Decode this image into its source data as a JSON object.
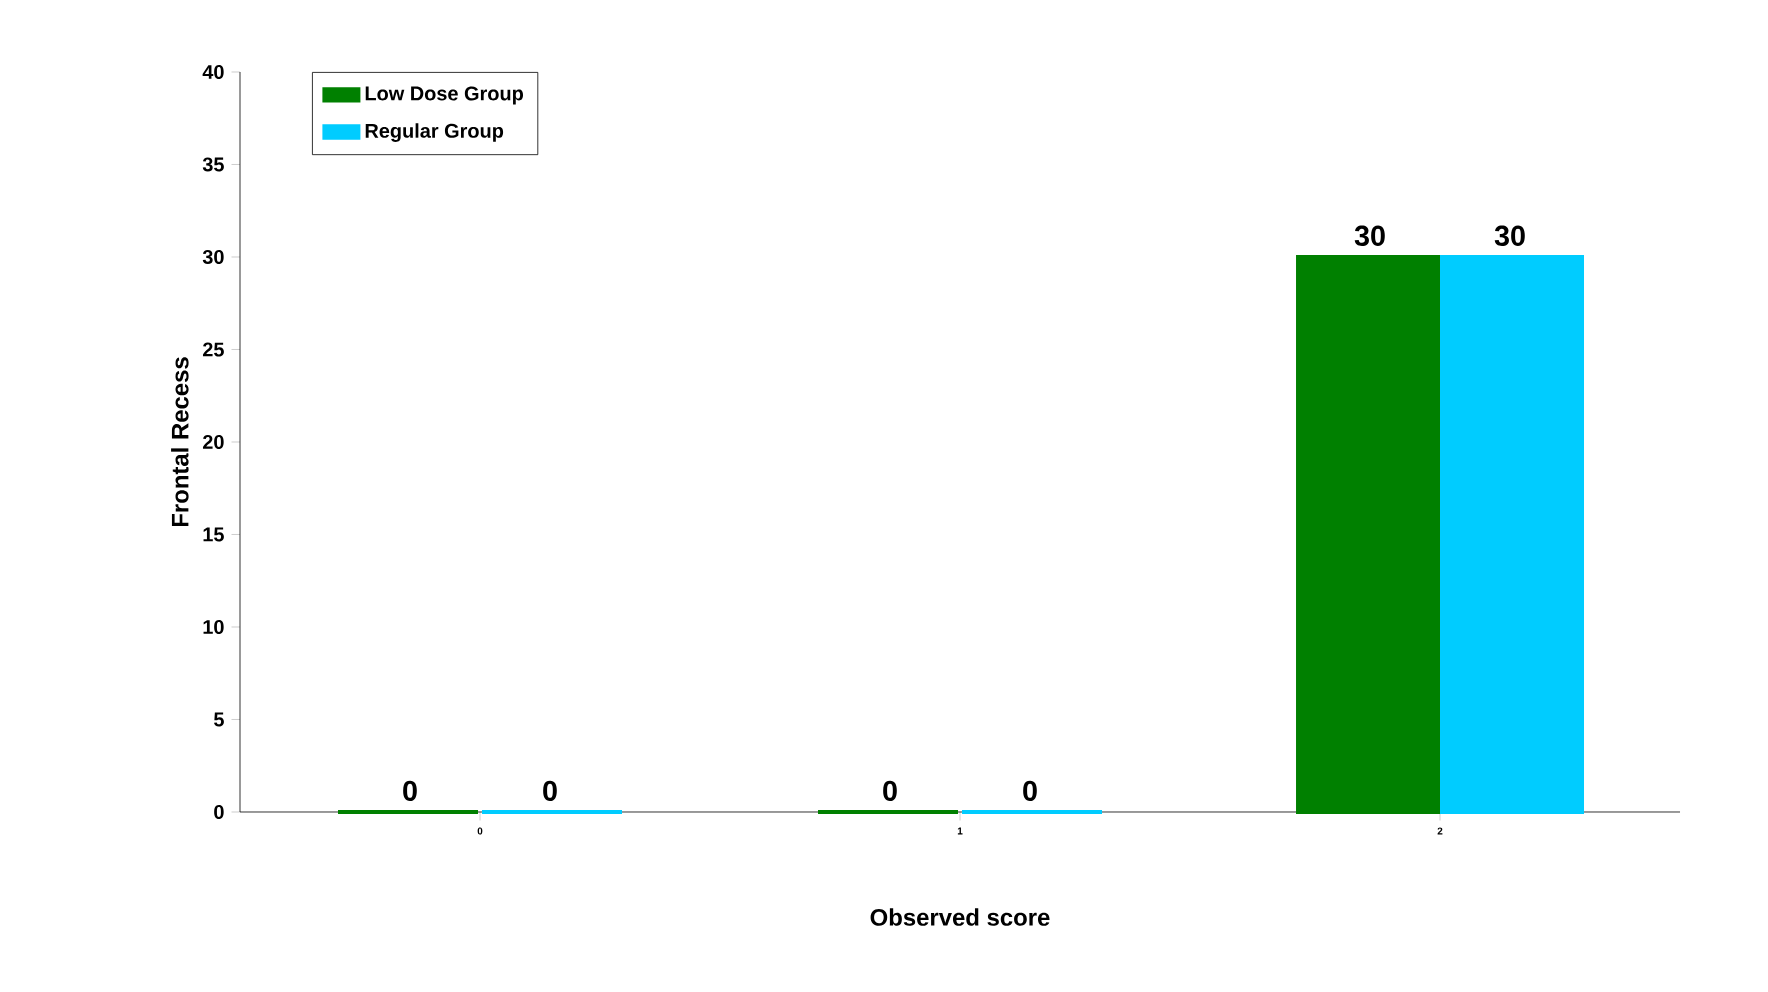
{
  "chart_data": {
    "type": "bar",
    "xlabel": "Observed score",
    "ylabel": "Frontal Recess",
    "categories": [
      "0",
      "1",
      "2"
    ],
    "series": [
      {
        "name": "Low Dose Group",
        "color": "#008000",
        "values": [
          0,
          0,
          30
        ]
      },
      {
        "name": "Regular Group",
        "color": "#00ccff",
        "values": [
          0,
          0,
          30
        ]
      }
    ],
    "ylim": [
      0,
      40
    ],
    "yticks": [
      0,
      5,
      10,
      15,
      20,
      25,
      30,
      35,
      40
    ],
    "data_labels": true,
    "legend": "top left",
    "grid": false
  }
}
